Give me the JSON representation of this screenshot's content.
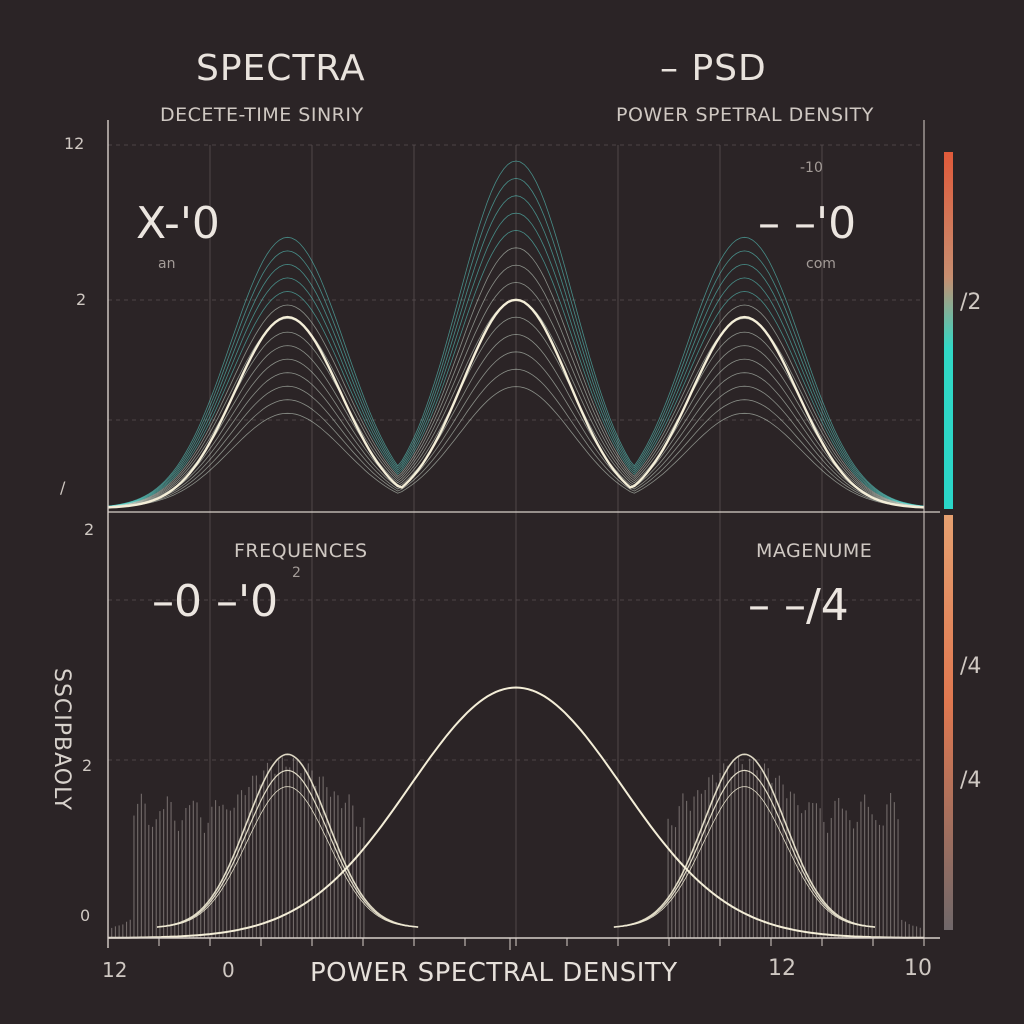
{
  "header": {
    "title_left": "SPECTRA",
    "title_right": "– PSD",
    "subtitle_left": "DECETE-TIME SINRIY",
    "subtitle_right": "POWER SPETRAL DENSITY"
  },
  "panels": {
    "top": {
      "left_value": "X-'0",
      "left_small": "an",
      "right_value": "– –'0",
      "right_small_top": "-10",
      "right_small_bottom": "com"
    },
    "bottom": {
      "left_label": "FREQUENCES",
      "left_value": "–0 –'0",
      "left_small": "2",
      "right_label": "MAGENUME",
      "right_value": "– –/4"
    }
  },
  "axes": {
    "xlabel": "POWER SPECTRAL DENSITY",
    "ylabel": "SSCIPBAOLY",
    "y_ticks_top": [
      "12",
      "2",
      "/"
    ],
    "y_ticks_bottom": [
      "2",
      "2",
      "0"
    ],
    "x_ticks": [
      "12",
      "0",
      "12",
      "10"
    ],
    "colorbar_labels": [
      "/2",
      "/4",
      "/4"
    ]
  },
  "colors": {
    "background": "#2b2426",
    "teal": "#35d6c8",
    "cream": "#f2ecd6",
    "orange": "#e07840",
    "red": "#c03a2c",
    "grid": "#6a6062"
  },
  "chart_data": [
    {
      "type": "line",
      "title": "SPECTRA",
      "subtitle": "DECETE-TIME SINRIY",
      "series": [
        {
          "peaks": [
            {
              "x": 0.22,
              "height": 0.78
            },
            {
              "x": 0.5,
              "height": 1.0
            },
            {
              "x": 0.78,
              "height": 0.78
            }
          ]
        },
        {
          "peaks": [
            {
              "x": 0.22,
              "height": 0.55
            },
            {
              "x": 0.5,
              "height": 0.6
            },
            {
              "x": 0.78,
              "height": 0.55
            }
          ]
        }
      ]
    },
    {
      "type": "line",
      "title": "PSD",
      "subtitle": "POWER SPETRAL DENSITY",
      "series": [
        {
          "peaks": [
            {
              "x": 0.22,
              "height": 0.45
            },
            {
              "x": 0.5,
              "height": 1.0
            },
            {
              "x": 0.78,
              "height": 0.45
            }
          ]
        }
      ]
    }
  ]
}
